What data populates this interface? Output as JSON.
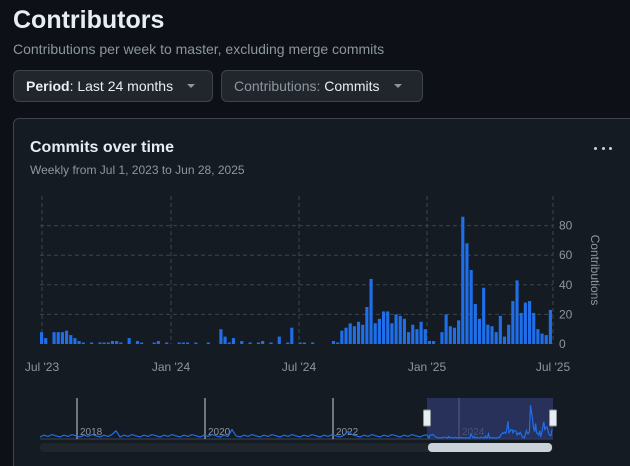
{
  "header": {
    "title": "Contributors",
    "subtitle": "Contributions per week to master, excluding merge commits"
  },
  "filters": {
    "period": {
      "key": "Period",
      "value": "Last 24 months"
    },
    "contributions": {
      "key": "Contributions",
      "value": "Commits"
    }
  },
  "card": {
    "title": "Commits over time",
    "subtitle": "Weekly from Jul 1, 2023 to Jun 28, 2025",
    "menu_icon": "kebab-horizontal-icon"
  },
  "colors": {
    "bar": "#1f6feb",
    "grid": "#3d444d",
    "text": "#8d96a0",
    "selection": "#2e3a6e"
  },
  "chart_data": {
    "type": "bar",
    "title": "Commits over time",
    "ylabel": "Contributions",
    "ylim": [
      0,
      100
    ],
    "y_ticks": [
      0,
      20,
      40,
      60,
      80
    ],
    "x_tick_labels": [
      "Jul '23",
      "Jan '24",
      "Jul '24",
      "Jan '25",
      "Jul '25"
    ],
    "grid": true,
    "y_axis_side": "right",
    "values": [
      8,
      4,
      0,
      8,
      8,
      8,
      9,
      6,
      4,
      2,
      1,
      0,
      1,
      0,
      1,
      1,
      1,
      2,
      2,
      1,
      0,
      4,
      0,
      2,
      1,
      0,
      0,
      1,
      2,
      0,
      1,
      0,
      0,
      1,
      1,
      1,
      0,
      1,
      0,
      0,
      1,
      0,
      0,
      10,
      5,
      1,
      4,
      0,
      2,
      0,
      1,
      0,
      1,
      2,
      0,
      1,
      0,
      5,
      0,
      1,
      11,
      0,
      1,
      1,
      0,
      1,
      0,
      0,
      0,
      0,
      2,
      1,
      9,
      11,
      14,
      12,
      15,
      13,
      25,
      44,
      14,
      17,
      22,
      22,
      14,
      20,
      19,
      17,
      8,
      13,
      10,
      15,
      10,
      2,
      2,
      0,
      8,
      20,
      12,
      11,
      16,
      86,
      68,
      50,
      27,
      17,
      38,
      13,
      12,
      8,
      19,
      5,
      13,
      29,
      43,
      21,
      28,
      29,
      21,
      10,
      7,
      6,
      23
    ],
    "navigator": {
      "year_labels": [
        "2018",
        "2020",
        "2022",
        "2024"
      ],
      "selection_range": [
        "Jul '23",
        "Jul '25"
      ]
    }
  }
}
